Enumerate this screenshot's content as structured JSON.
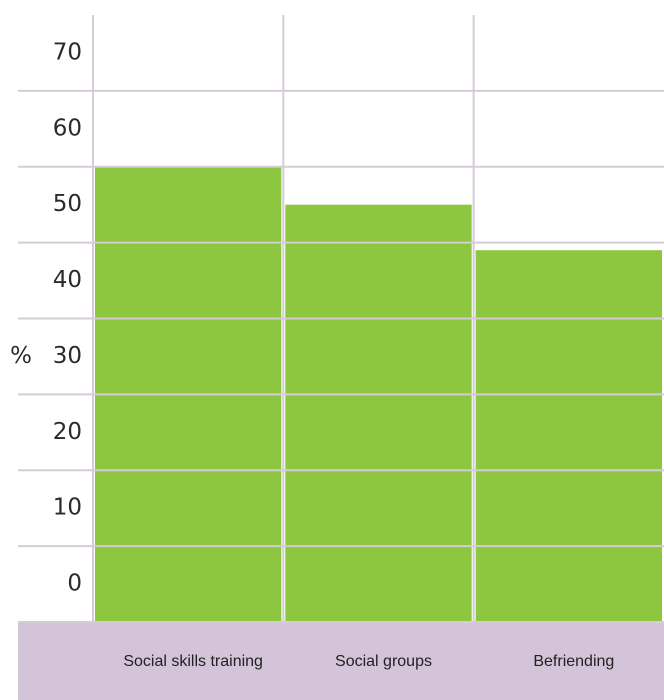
{
  "chart_data": {
    "type": "bar",
    "y_label": "%",
    "categories": [
      "Social skills training",
      "Social groups",
      "Befriending"
    ],
    "values": [
      60,
      55,
      49
    ],
    "color": "#8dc63f",
    "ylim": [
      0,
      80
    ],
    "yticks": [
      0,
      10,
      20,
      30,
      40,
      50,
      60,
      70
    ],
    "grid": true
  }
}
